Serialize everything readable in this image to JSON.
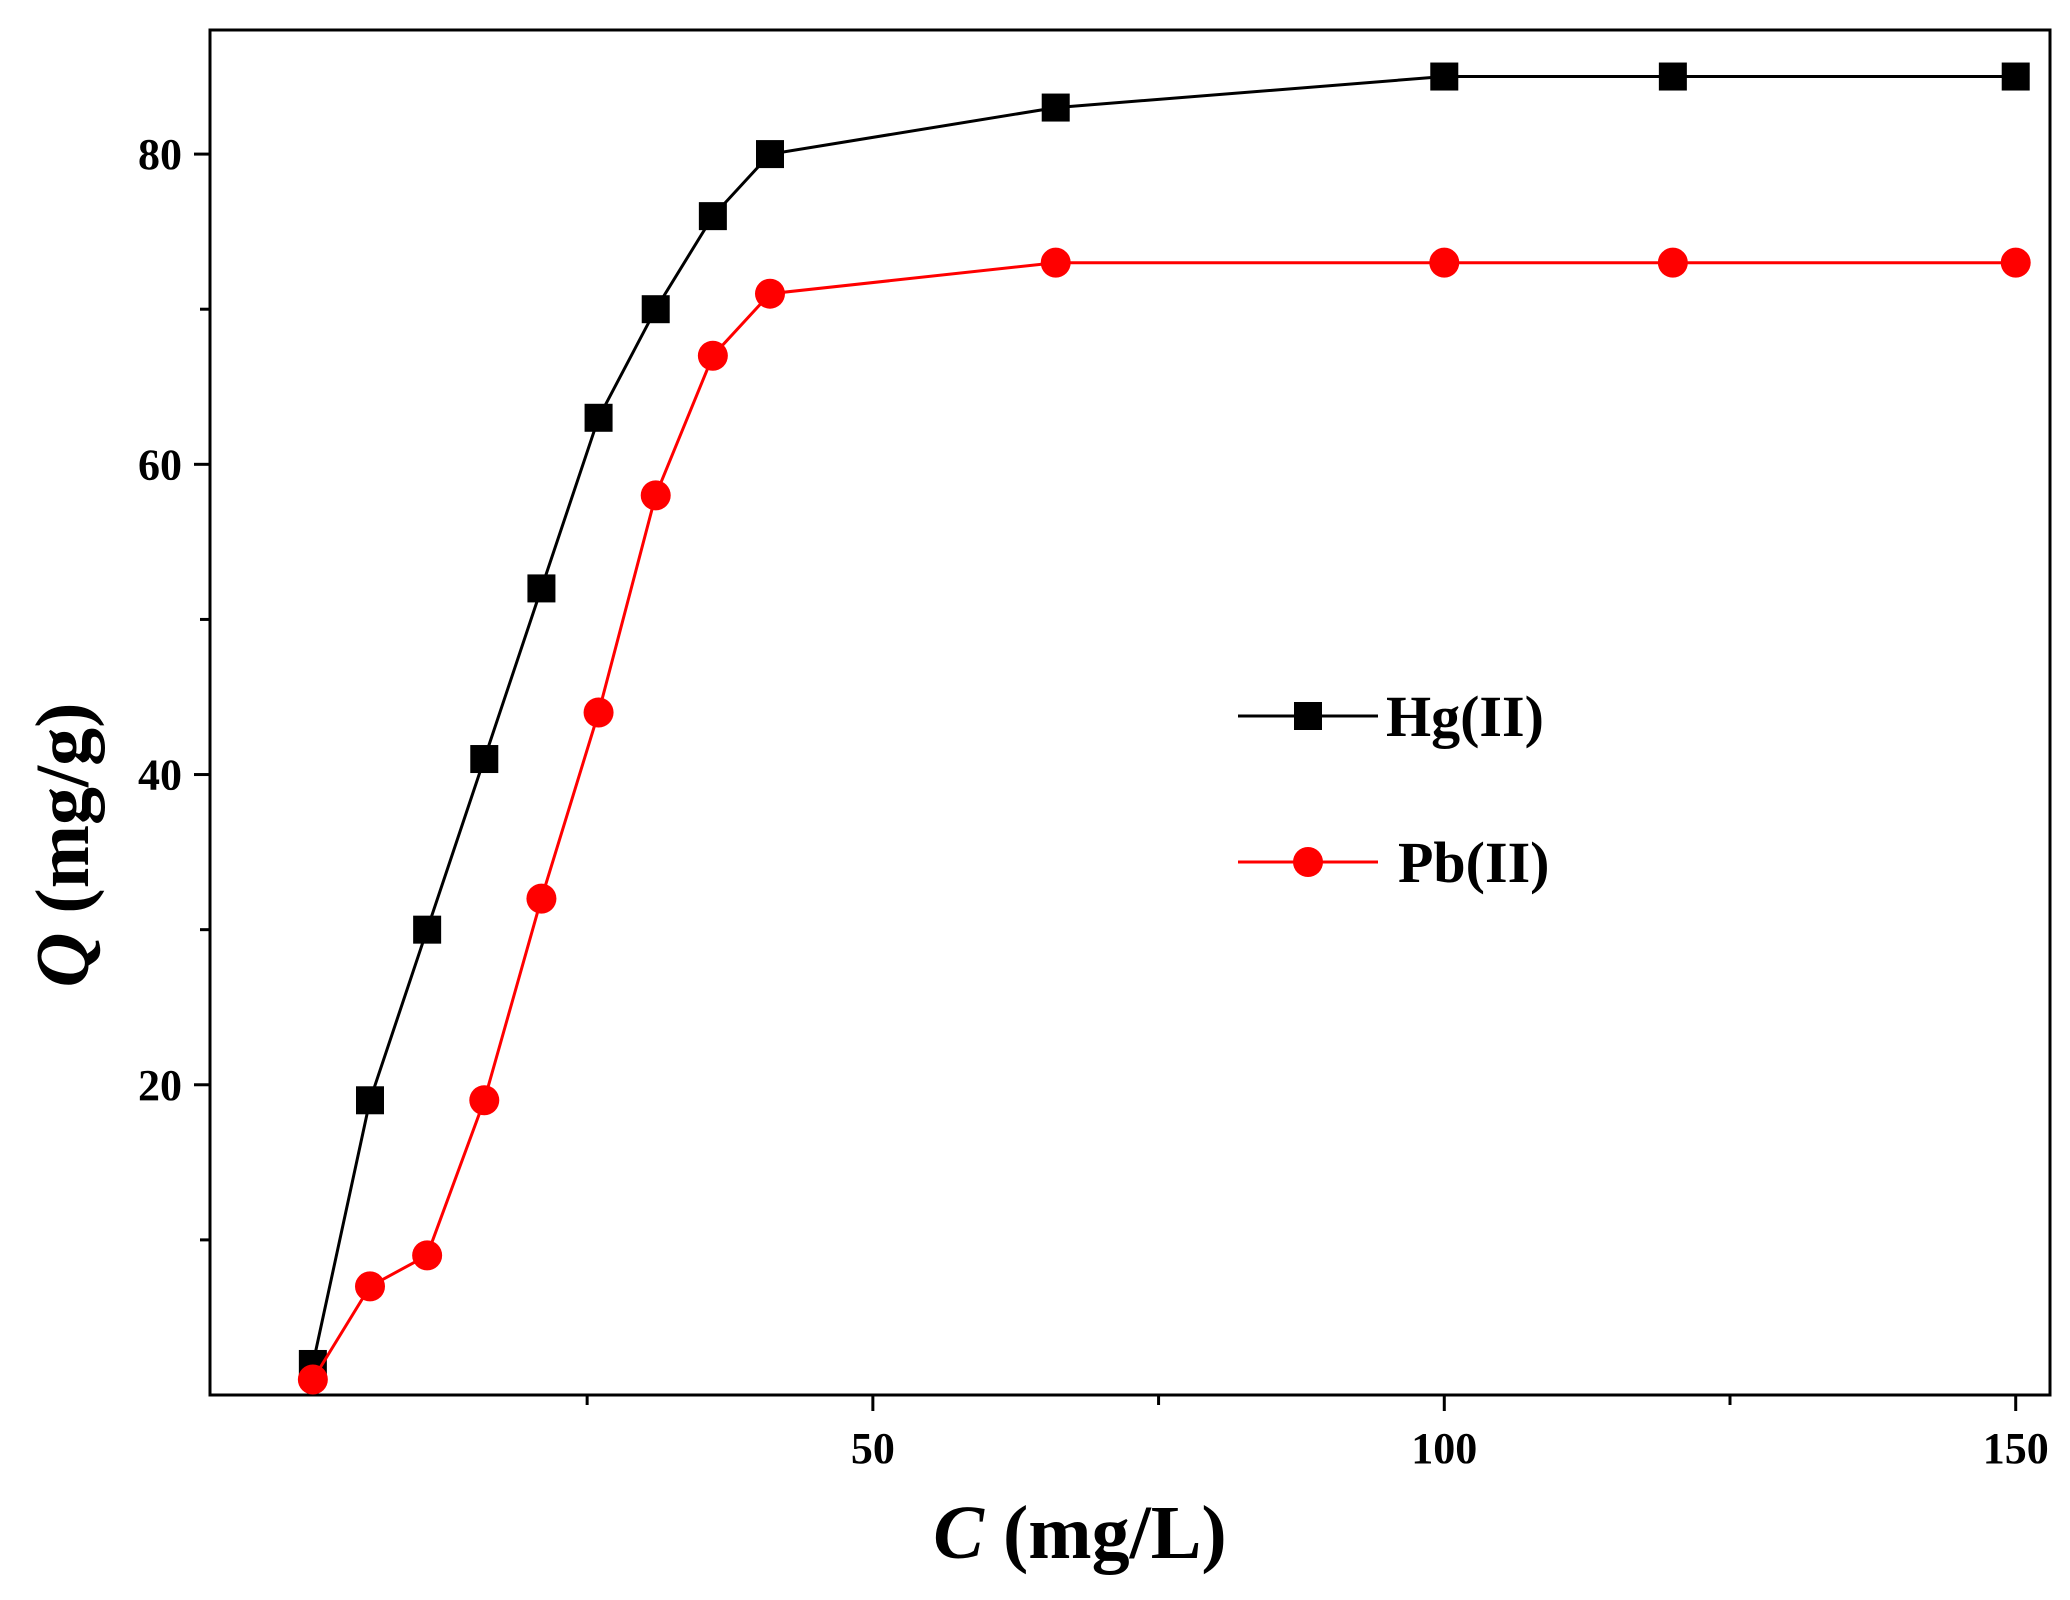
{
  "chart_data": {
    "type": "line",
    "xlabel": {
      "var": "C",
      "unit": " (mg/L)"
    },
    "ylabel": {
      "var": "Q",
      "unit": " (mg/g)"
    },
    "xlim": [
      -8,
      153
    ],
    "ylim": [
      0,
      88
    ],
    "x_ticks_major": [
      50,
      100,
      150
    ],
    "x_ticks_minor": [
      25,
      75,
      125
    ],
    "y_ticks_major": [
      20,
      40,
      60,
      80
    ],
    "y_ticks_minor": [
      10,
      30,
      50,
      70
    ],
    "grid": false,
    "legend_placement": "center-right",
    "series": [
      {
        "name": "Hg(II)",
        "color": "#000000",
        "marker": "square",
        "x": [
          1,
          6,
          11,
          16,
          21,
          26,
          31,
          36,
          41,
          66,
          100,
          120,
          150
        ],
        "y": [
          2,
          19,
          30,
          41,
          52,
          63,
          70,
          76,
          80,
          83,
          85,
          85,
          85
        ]
      },
      {
        "name": "Pb(II)",
        "color": "#ff0000",
        "marker": "circle",
        "x": [
          1,
          6,
          11,
          16,
          21,
          26,
          31,
          36,
          41,
          66,
          100,
          120,
          150
        ],
        "y": [
          1,
          7,
          9,
          19,
          32,
          44,
          58,
          67,
          71,
          73,
          73,
          73,
          73
        ]
      }
    ]
  }
}
